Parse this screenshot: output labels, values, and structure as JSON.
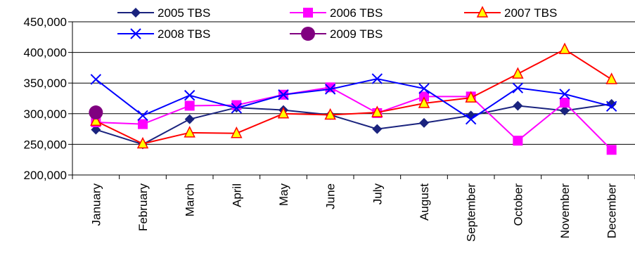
{
  "chart_data": {
    "type": "line",
    "title": "",
    "xlabel": "",
    "ylabel": "",
    "categories": [
      "January",
      "February",
      "March",
      "April",
      "May",
      "June",
      "July",
      "August",
      "September",
      "October",
      "November",
      "December"
    ],
    "ylim": [
      200000,
      450000
    ],
    "yticks": [
      200000,
      250000,
      300000,
      350000,
      400000,
      450000
    ],
    "ytick_labels": [
      "200,000",
      "250,000",
      "300,000",
      "350,000",
      "400,000",
      "450,000"
    ],
    "grid": "horizontal",
    "legend_position": "top",
    "series": [
      {
        "name": "2005 TBS",
        "color": "#1a237e",
        "marker": "diamond",
        "values": [
          274000,
          250000,
          291000,
          310000,
          306000,
          298000,
          275000,
          285000,
          297000,
          313000,
          305000,
          316000
        ]
      },
      {
        "name": "2006 TBS",
        "color": "#ff00ff",
        "marker": "square",
        "values": [
          286000,
          283000,
          313000,
          314000,
          331000,
          343000,
          301000,
          328000,
          328000,
          256000,
          318000,
          241000
        ]
      },
      {
        "name": "2007 TBS",
        "color": "#ff0000",
        "marker": "triangle",
        "values": [
          288000,
          251000,
          269000,
          268000,
          300000,
          298000,
          302000,
          317000,
          326000,
          365000,
          405000,
          356000
        ]
      },
      {
        "name": "2008 TBS",
        "color": "#0000ff",
        "marker": "x",
        "values": [
          356000,
          297000,
          330000,
          309000,
          331000,
          340000,
          357000,
          341000,
          291000,
          342000,
          332000,
          312000
        ]
      },
      {
        "name": "2009 TBS",
        "color": "#800080",
        "marker": "circle",
        "values": [
          302000,
          null,
          null,
          null,
          null,
          null,
          null,
          null,
          null,
          null,
          null,
          null
        ]
      }
    ]
  }
}
